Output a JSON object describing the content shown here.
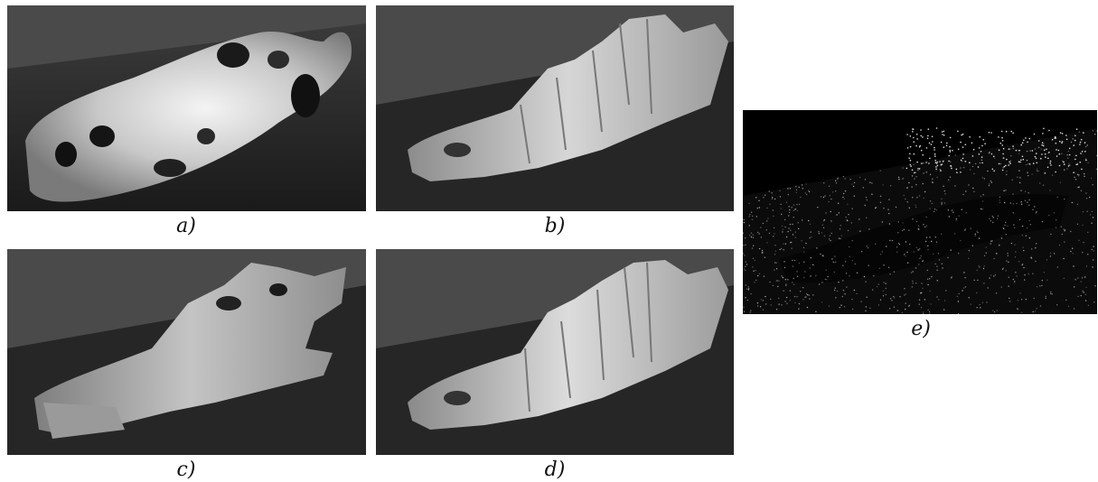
{
  "figure": {
    "panels": [
      {
        "id": "a",
        "label": "a)"
      },
      {
        "id": "b",
        "label": "b)"
      },
      {
        "id": "c",
        "label": "c)"
      },
      {
        "id": "d",
        "label": "d)"
      },
      {
        "id": "e",
        "label": "e)"
      }
    ]
  }
}
